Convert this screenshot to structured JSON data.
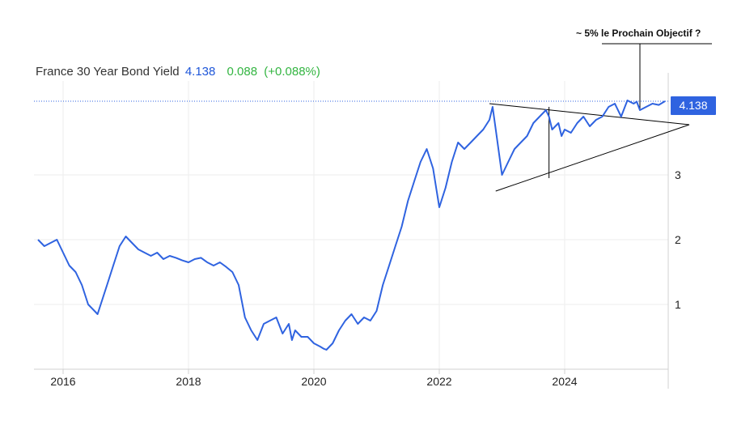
{
  "header": {
    "title": "France 30 Year Bond Yield",
    "price": "4.138",
    "change": "0.088",
    "change_pct": "(+0.088%)"
  },
  "price_tag": "4.138",
  "annotation": "~ 5% le Prochain Objectif ?",
  "colors": {
    "line": "#2f63e0",
    "price": "#1e56d9",
    "positive": "#33b541",
    "grid": "#eeeeee",
    "axis": "#d0d0d0",
    "trendline": "#000000"
  },
  "chart_data": {
    "type": "line",
    "title": "",
    "xlabel": "",
    "ylabel": "",
    "xlim": [
      2015.6,
      2025.8
    ],
    "ylim": [
      0,
      4.2
    ],
    "x_ticks": [
      2016,
      2018,
      2020,
      2022,
      2024
    ],
    "x_tick_labels": [
      "2016",
      "2018",
      "2020",
      "2022",
      "2024"
    ],
    "y_ticks": [
      1,
      2,
      3
    ],
    "y_tick_labels": [
      "1",
      "2",
      "3"
    ],
    "grid": true,
    "series": [
      {
        "x": [
          2015.6,
          2015.7,
          2015.8,
          2015.9,
          2016.0,
          2016.1,
          2016.2,
          2016.3,
          2016.4,
          2016.5,
          2016.55,
          2016.6,
          2016.7,
          2016.8,
          2016.9,
          2017.0,
          2017.1,
          2017.2,
          2017.3,
          2017.4,
          2017.5,
          2017.6,
          2017.7,
          2017.8,
          2017.9,
          2018.0,
          2018.1,
          2018.2,
          2018.3,
          2018.4,
          2018.5,
          2018.6,
          2018.7,
          2018.8,
          2018.9,
          2019.0,
          2019.1,
          2019.2,
          2019.3,
          2019.4,
          2019.5,
          2019.6,
          2019.65,
          2019.7,
          2019.8,
          2019.9,
          2020.0,
          2020.1,
          2020.15,
          2020.2,
          2020.3,
          2020.4,
          2020.5,
          2020.6,
          2020.7,
          2020.8,
          2020.9,
          2021.0,
          2021.1,
          2021.2,
          2021.3,
          2021.4,
          2021.5,
          2021.6,
          2021.7,
          2021.8,
          2021.9,
          2022.0,
          2022.1,
          2022.2,
          2022.3,
          2022.4,
          2022.5,
          2022.6,
          2022.7,
          2022.8,
          2022.85,
          2022.9,
          2023.0,
          2023.1,
          2023.2,
          2023.3,
          2023.4,
          2023.5,
          2023.6,
          2023.7,
          2023.75,
          2023.8,
          2023.9,
          2023.95,
          2024.0,
          2024.1,
          2024.2,
          2024.3,
          2024.4,
          2024.5,
          2024.6,
          2024.7,
          2024.8,
          2024.9,
          2025.0,
          2025.1,
          2025.15,
          2025.2,
          2025.3,
          2025.4,
          2025.5,
          2025.6
        ],
        "values": [
          2.0,
          1.9,
          1.95,
          2.0,
          1.8,
          1.6,
          1.5,
          1.3,
          1.0,
          0.9,
          0.85,
          1.0,
          1.3,
          1.6,
          1.9,
          2.05,
          1.95,
          1.85,
          1.8,
          1.75,
          1.8,
          1.7,
          1.75,
          1.72,
          1.68,
          1.65,
          1.7,
          1.72,
          1.65,
          1.6,
          1.65,
          1.58,
          1.5,
          1.3,
          0.8,
          0.6,
          0.45,
          0.7,
          0.75,
          0.8,
          0.55,
          0.7,
          0.45,
          0.6,
          0.5,
          0.5,
          0.4,
          0.35,
          0.32,
          0.3,
          0.4,
          0.6,
          0.75,
          0.85,
          0.7,
          0.8,
          0.75,
          0.9,
          1.3,
          1.6,
          1.9,
          2.2,
          2.6,
          2.9,
          3.2,
          3.4,
          3.1,
          2.5,
          2.8,
          3.2,
          3.5,
          3.4,
          3.5,
          3.6,
          3.7,
          3.85,
          4.05,
          3.7,
          3.0,
          3.2,
          3.4,
          3.5,
          3.6,
          3.8,
          3.9,
          4.0,
          3.9,
          3.7,
          3.8,
          3.6,
          3.7,
          3.65,
          3.8,
          3.9,
          3.75,
          3.85,
          3.9,
          4.05,
          4.1,
          3.9,
          4.15,
          4.1,
          4.13,
          4.0,
          4.05,
          4.1,
          4.08,
          4.138
        ]
      }
    ],
    "current_value": 4.138,
    "trendlines": [
      {
        "x": [
          2022.8,
          2025.6
        ],
        "values": [
          4.1,
          3.85
        ]
      },
      {
        "x": [
          2022.9,
          2025.6
        ],
        "values": [
          2.75,
          3.85
        ]
      }
    ]
  }
}
